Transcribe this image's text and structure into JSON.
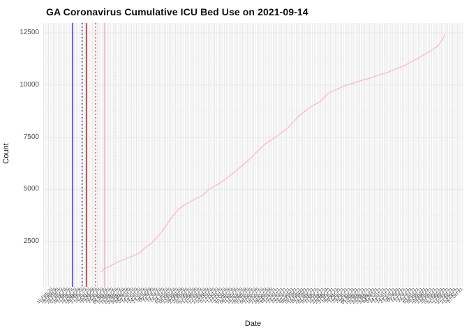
{
  "title": "GA Coronavirus Cumulative ICU Bed Use on 2021-09-14",
  "x_axis": {
    "label": "Date",
    "tick_start": "2020-02-10",
    "tick_step_days": 5,
    "tick_format": "DD Mon YY",
    "tick_angle_deg": 45,
    "tick_color": "#4a4a4a"
  },
  "y_axis": {
    "label": "Count",
    "ticks": [
      "2500",
      "5000",
      "7500",
      "10000",
      "12500"
    ],
    "minor_tick_values": [
      1250,
      3750,
      6250,
      8750,
      11250
    ],
    "major_tick_values": [
      2500,
      5000,
      7500,
      10000,
      12500
    ],
    "tick_color": "#4d4d4d"
  },
  "reference_lines": [
    {
      "date": "2020-03-14",
      "color": "#1414cc",
      "style": "solid"
    },
    {
      "date": "2020-03-28",
      "color": "#000099",
      "style": "dotted"
    },
    {
      "date": "2020-04-03",
      "color": "#b30000",
      "style": "solid"
    },
    {
      "date": "2020-04-17",
      "color": "#ee0000",
      "style": "dotted"
    },
    {
      "date": "2020-04-30",
      "color": "#ffaec0",
      "style": "solid"
    },
    {
      "date": "2020-05-14",
      "color": "#ffc9d4",
      "style": "dotted"
    }
  ],
  "colors": {
    "background": "#ffffff",
    "grid_major": "#e7e7e7",
    "grid_minor": "#f1f1f1",
    "series_line": "#f9b5c4",
    "title_text": "#0d0d0d",
    "axis_text": "#4d4d4d"
  },
  "chart_data": {
    "type": "line",
    "title": "GA Coronavirus Cumulative ICU Bed Use on 2021-09-14",
    "xlabel": "Date",
    "ylabel": "Count",
    "x_range": [
      "2020-02-10",
      "2021-10-06"
    ],
    "ylim": [
      400,
      13000
    ],
    "grid": true,
    "legend": false,
    "series": [
      {
        "name": "Cumulative ICU bed use",
        "color": "#f9b5c4",
        "points": [
          [
            "2020-04-25",
            1030
          ],
          [
            "2020-04-30",
            1200
          ],
          [
            "2020-05-07",
            1300
          ],
          [
            "2020-05-16",
            1465
          ],
          [
            "2020-05-23",
            1565
          ],
          [
            "2020-05-31",
            1665
          ],
          [
            "2020-06-10",
            1800
          ],
          [
            "2020-06-21",
            1965
          ],
          [
            "2020-07-01",
            2265
          ],
          [
            "2020-07-09",
            2435
          ],
          [
            "2020-07-16",
            2700
          ],
          [
            "2020-07-24",
            3000
          ],
          [
            "2020-08-01",
            3370
          ],
          [
            "2020-08-09",
            3740
          ],
          [
            "2020-08-17",
            4040
          ],
          [
            "2020-08-25",
            4240
          ],
          [
            "2020-09-03",
            4405
          ],
          [
            "2020-09-11",
            4540
          ],
          [
            "2020-09-21",
            4705
          ],
          [
            "2020-10-01",
            5010
          ],
          [
            "2020-10-14",
            5240
          ],
          [
            "2020-10-26",
            5510
          ],
          [
            "2020-11-07",
            5810
          ],
          [
            "2020-11-20",
            6180
          ],
          [
            "2020-12-02",
            6515
          ],
          [
            "2020-12-12",
            6850
          ],
          [
            "2020-12-23",
            7185
          ],
          [
            "2021-01-02",
            7385
          ],
          [
            "2021-01-12",
            7620
          ],
          [
            "2021-01-23",
            7885
          ],
          [
            "2021-02-02",
            8220
          ],
          [
            "2021-02-12",
            8555
          ],
          [
            "2021-02-22",
            8820
          ],
          [
            "2021-03-05",
            9055
          ],
          [
            "2021-03-15",
            9225
          ],
          [
            "2021-03-25",
            9590
          ],
          [
            "2021-04-07",
            9790
          ],
          [
            "2021-04-19",
            9960
          ],
          [
            "2021-05-01",
            10090
          ],
          [
            "2021-05-14",
            10225
          ],
          [
            "2021-05-26",
            10325
          ],
          [
            "2021-06-07",
            10460
          ],
          [
            "2021-06-20",
            10595
          ],
          [
            "2021-07-02",
            10760
          ],
          [
            "2021-07-14",
            10895
          ],
          [
            "2021-07-27",
            11130
          ],
          [
            "2021-08-06",
            11295
          ],
          [
            "2021-08-16",
            11495
          ],
          [
            "2021-08-27",
            11700
          ],
          [
            "2021-09-04",
            11900
          ],
          [
            "2021-09-10",
            12200
          ],
          [
            "2021-09-14",
            12450
          ]
        ]
      }
    ]
  }
}
